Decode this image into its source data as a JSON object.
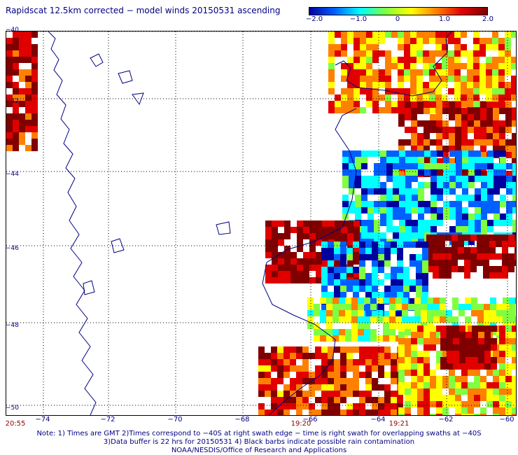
{
  "title": "Rapidscat 12.5km corrected − model winds 20150531 ascending",
  "colorbar": {
    "labels": [
      "−2.0",
      "−1.0",
      "0",
      "1.0",
      "2.0"
    ],
    "colors": [
      "#0000a0",
      "#0060ff",
      "#00ffff",
      "#80ff40",
      "#ffff00",
      "#ff8000",
      "#e00000",
      "#800000"
    ]
  },
  "lat_labels": [
    "−40",
    "−42",
    "−44",
    "−46",
    "−48",
    "−50"
  ],
  "lon_labels": [
    "−74",
    "−72",
    "−70",
    "−68",
    "−66",
    "−64",
    "−62",
    "−60"
  ],
  "time_labels": [
    "20:55",
    "19:20",
    "19:21"
  ],
  "notes": [
    "Note: 1) Times are GMT 2)Times correspond to −40S at right swath edge − time is right swath for overlapping swaths at −40S",
    "3)Data buffer is 22 hrs for 20150531 4) Black barbs indicate possible rain contamination",
    "NOAA/NESDIS/Office of Research and Applications"
  ],
  "colors": {
    "coast": "#000080",
    "grid": "#000000",
    "text": "#000080",
    "time": "#8b0000"
  }
}
